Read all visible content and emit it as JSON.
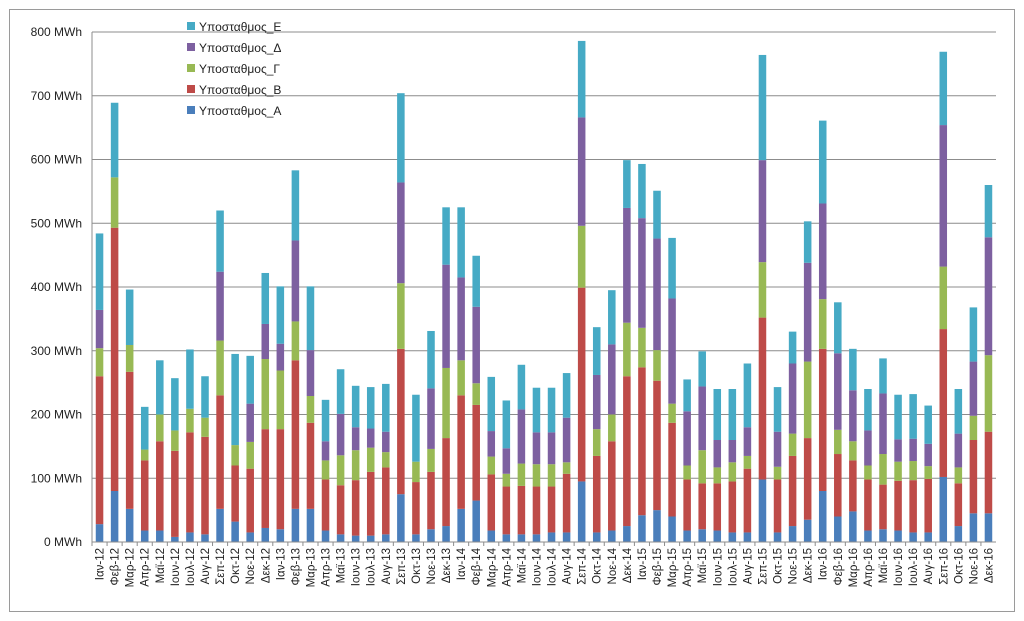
{
  "chart_data": {
    "type": "bar",
    "stacked": true,
    "title": "",
    "xlabel": "",
    "ylabel": "",
    "unit": "MWh",
    "ylim": [
      0,
      800
    ],
    "yticks": [
      "0 MWh",
      "100 MWh",
      "200 MWh",
      "300 MWh",
      "400 MWh",
      "500 MWh",
      "600 MWh",
      "700 MWh",
      "800 MWh"
    ],
    "grid": true,
    "legend_position": "top-left",
    "categories": [
      "Ιαν-12",
      "Φεβ-12",
      "Μαρ-12",
      "Απρ-12",
      "Μαϊ-12",
      "Ιουν-12",
      "Ιουλ-12",
      "Αυγ-12",
      "Σεπ-12",
      "Οκτ-12",
      "Νοε-12",
      "Δεκ-12",
      "Ιαν-13",
      "Φεβ-13",
      "Μαρ-13",
      "Απρ-13",
      "Μαϊ-13",
      "Ιουν-13",
      "Ιουλ-13",
      "Αυγ-13",
      "Σεπ-13",
      "Οκτ-13",
      "Νοε-13",
      "Δεκ-13",
      "Ιαν-14",
      "Φεβ-14",
      "Μαρ-14",
      "Απρ-14",
      "Μαϊ-14",
      "Ιουν-14",
      "Ιουλ-14",
      "Αυγ-14",
      "Σεπ-14",
      "Οκτ-14",
      "Νοε-14",
      "Δεκ-14",
      "Ιαν-15",
      "Φεβ-15",
      "Μαρ-15",
      "Απρ-15",
      "Μαϊ-15",
      "Ιουν-15",
      "Ιουλ-15",
      "Αυγ-15",
      "Σεπ-15",
      "Οκτ-15",
      "Νοε-15",
      "Δεκ-15",
      "Ιαν-16",
      "Φεβ-16",
      "Μαρ-16",
      "Απρ-16",
      "Μαϊ-16",
      "Ιουν-16",
      "Ιουλ-16",
      "Αυγ-16",
      "Σεπ-16",
      "Οκτ-16",
      "Νοε-16",
      "Δεκ-16"
    ],
    "series": [
      {
        "name": "Υποσταθμος_Α",
        "color": "#4a7ebb",
        "values": [
          28,
          80,
          52,
          18,
          18,
          8,
          15,
          12,
          52,
          32,
          15,
          22,
          20,
          52,
          52,
          18,
          12,
          10,
          10,
          12,
          75,
          12,
          20,
          25,
          52,
          65,
          18,
          12,
          12,
          12,
          15,
          15,
          95,
          15,
          18,
          25,
          42,
          50,
          40,
          18,
          20,
          18,
          15,
          15,
          98,
          15,
          25,
          35,
          80,
          40,
          48,
          18,
          20,
          18,
          15,
          15,
          102,
          25,
          45,
          45
        ]
      },
      {
        "name": "Υποσταθμος_Β",
        "color": "#be4b48",
        "values": [
          232,
          413,
          215,
          110,
          140,
          135,
          157,
          153,
          178,
          88,
          100,
          155,
          157,
          233,
          135,
          80,
          77,
          87,
          100,
          105,
          228,
          82,
          90,
          138,
          178,
          150,
          88,
          75,
          76,
          75,
          72,
          92,
          304,
          120,
          140,
          235,
          232,
          203,
          147,
          80,
          72,
          74,
          80,
          100,
          254,
          83,
          110,
          128,
          223,
          98,
          80,
          80,
          70,
          78,
          82,
          84,
          232,
          67,
          115,
          128
        ]
      },
      {
        "name": "Υποσταθμος_Γ",
        "color": "#98b954",
        "values": [
          44,
          79,
          42,
          17,
          42,
          32,
          37,
          30,
          86,
          32,
          42,
          110,
          92,
          61,
          42,
          30,
          47,
          47,
          38,
          24,
          103,
          32,
          36,
          110,
          55,
          34,
          28,
          20,
          35,
          35,
          35,
          18,
          97,
          42,
          42,
          84,
          62,
          48,
          30,
          22,
          52,
          25,
          30,
          20,
          87,
          20,
          35,
          120,
          78,
          38,
          30,
          22,
          48,
          30,
          30,
          20,
          98,
          25,
          38,
          120
        ]
      },
      {
        "name": "Υποσταθμος_Δ",
        "color": "#7d60a0",
        "values": [
          60,
          0,
          0,
          0,
          0,
          0,
          0,
          0,
          108,
          0,
          60,
          55,
          42,
          127,
          72,
          30,
          65,
          36,
          30,
          32,
          158,
          0,
          95,
          162,
          130,
          120,
          40,
          40,
          85,
          50,
          50,
          70,
          170,
          85,
          110,
          180,
          172,
          175,
          165,
          85,
          100,
          43,
          35,
          45,
          160,
          55,
          110,
          155,
          150,
          120,
          80,
          55,
          95,
          35,
          35,
          35,
          222,
          53,
          85,
          185
        ]
      },
      {
        "name": "Υποσταθμος_Ε",
        "color": "#46aac5",
        "values": [
          120,
          117,
          87,
          67,
          85,
          82,
          93,
          65,
          96,
          143,
          75,
          80,
          90,
          110,
          100,
          65,
          70,
          65,
          65,
          75,
          140,
          105,
          90,
          90,
          110,
          80,
          85,
          75,
          70,
          70,
          70,
          70,
          120,
          75,
          85,
          75,
          85,
          75,
          95,
          50,
          55,
          80,
          80,
          100,
          165,
          70,
          50,
          65,
          130,
          80,
          65,
          65,
          55,
          70,
          70,
          60,
          115,
          70,
          85,
          82
        ]
      }
    ]
  }
}
